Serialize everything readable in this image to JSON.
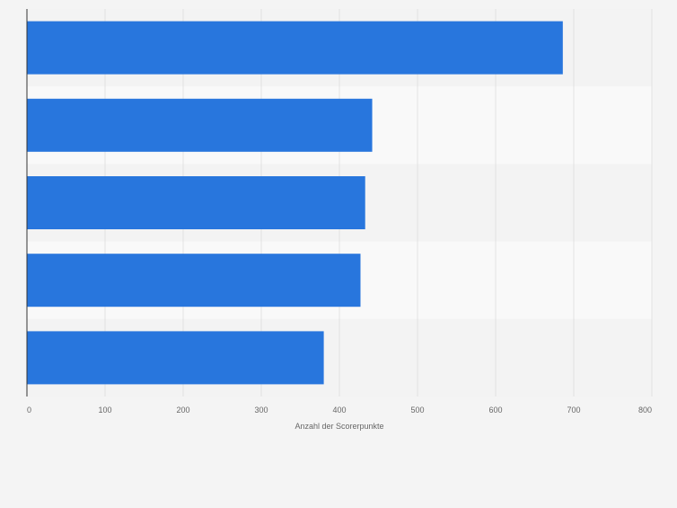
{
  "chart_data": {
    "type": "bar",
    "orientation": "horizontal",
    "categories": [
      "",
      "",
      "",
      "",
      ""
    ],
    "values": [
      686,
      442,
      433,
      427,
      380
    ],
    "xlabel": "Anzahl der Scorerpunkte",
    "ylabel": "",
    "xlim": [
      0,
      800
    ],
    "xticks": [
      0,
      100,
      200,
      300,
      400,
      500,
      600,
      700,
      800
    ],
    "xtick_labels": [
      "0",
      "100",
      "200",
      "300",
      "400",
      "500",
      "600",
      "700",
      "800"
    ],
    "grid": true,
    "legend": "none",
    "colors": {
      "bar": "#2876dd",
      "band_light": "#f9f9f9",
      "band_dark": "#f3f3f3",
      "grid": "#e2e2e2",
      "axis": "#333333",
      "text": "#666666",
      "background": "#f4f4f4"
    }
  }
}
